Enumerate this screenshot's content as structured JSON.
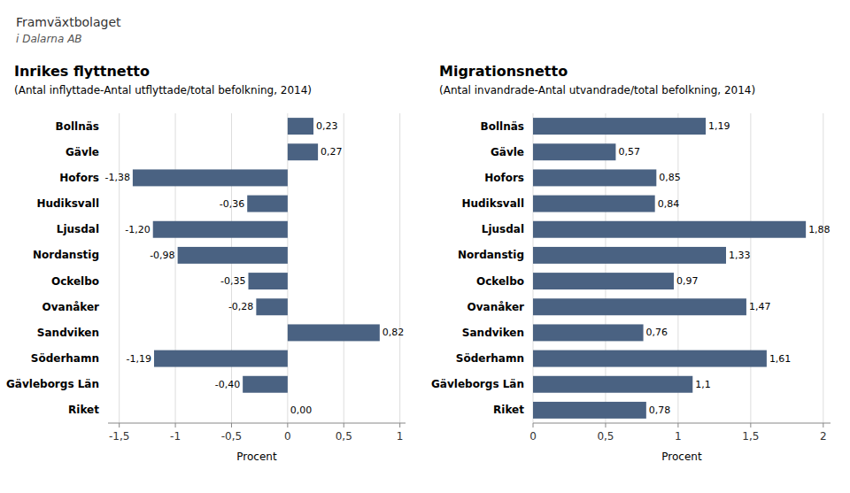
{
  "chart_data": [
    {
      "type": "bar",
      "orientation": "horizontal",
      "title": "Inrikes flyttnetto",
      "subtitle": "(Antal inflyttade-Antal utflyttade/total befolkning, 2014)",
      "annotations": [
        "Framväxtbolaget",
        "i Dalarna AB"
      ],
      "categories": [
        "Bollnäs",
        "Gävle",
        "Hofors",
        "Hudiksvall",
        "Ljusdal",
        "Nordanstig",
        "Ockelbo",
        "Ovanåker",
        "Sandviken",
        "Söderhamn",
        "Gävleborgs Län",
        "Riket"
      ],
      "values": [
        0.23,
        0.27,
        -1.38,
        -0.36,
        -1.2,
        -0.98,
        -0.35,
        -0.28,
        0.82,
        -1.19,
        -0.4,
        0.0
      ],
      "value_labels": [
        "0,23",
        "0,27",
        "-1,38",
        "-0,36",
        "-1,20",
        "-0,98",
        "-0,35",
        "-0,28",
        "0,82",
        "-1,19",
        "-0,40",
        "0,00"
      ],
      "data_labels": true,
      "color": "#4a6282",
      "xlabel": "Procent",
      "xlim": [
        -1.6,
        1.05
      ],
      "xticks": [
        {
          "value": -1.5,
          "label": "-1,5"
        },
        -1,
        {
          "value": -0.5,
          "label": "-0,5"
        },
        0,
        {
          "value": 0.5,
          "label": "0,5"
        },
        1
      ],
      "grid": true
    },
    {
      "type": "bar",
      "orientation": "horizontal",
      "title": "Migrationsnetto",
      "subtitle": "(Antal invandrade-Antal utvandrade/total befolkning, 2014)",
      "categories": [
        "Bollnäs",
        "Gävle",
        "Hofors",
        "Hudiksvall",
        "Ljusdal",
        "Nordanstig",
        "Ockelbo",
        "Ovanåker",
        "Sandviken",
        "Söderhamn",
        "Gävleborgs Län",
        "Riket"
      ],
      "values": [
        1.19,
        0.57,
        0.85,
        0.84,
        1.88,
        1.33,
        0.97,
        1.47,
        0.76,
        1.61,
        1.1,
        0.78
      ],
      "value_labels": [
        "1,19",
        "0,57",
        "0,85",
        "0,84",
        "1,88",
        "1,33",
        "0,97",
        "1,47",
        "0,76",
        "1,61",
        "1,1",
        "0,78"
      ],
      "data_labels": true,
      "color": "#4a6282",
      "xlabel": "Procent",
      "xlim": [
        0.0,
        2.05
      ],
      "xticks": [
        0,
        {
          "value": 0.5,
          "label": "0,5"
        },
        1,
        {
          "value": 1.5,
          "label": "1,5"
        },
        2
      ],
      "grid": true
    }
  ]
}
